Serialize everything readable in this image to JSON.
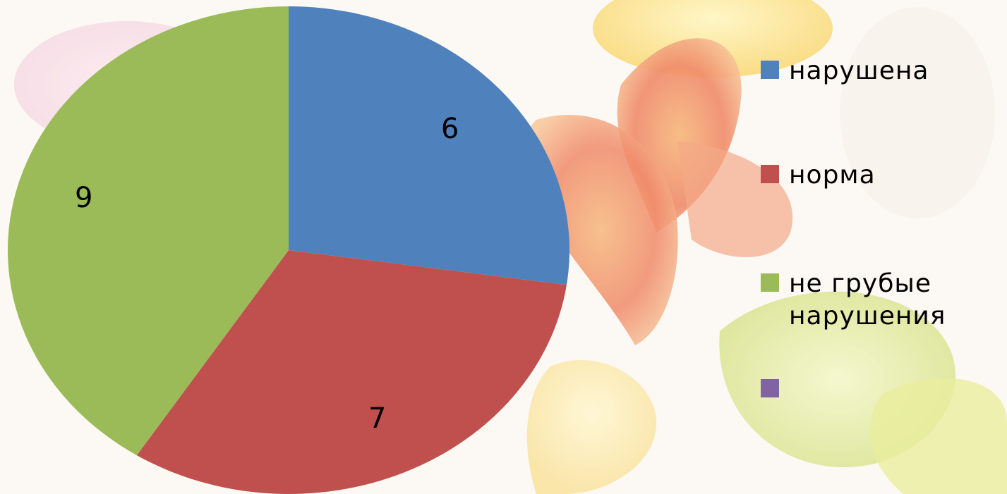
{
  "chart_data": {
    "type": "pie",
    "start_angle_deg": 0,
    "direction": "clockwise",
    "slices": [
      {
        "label": "нарушена",
        "value": 6,
        "color": "#4f81bd"
      },
      {
        "label": "норма",
        "value": 7,
        "color": "#c0504d"
      },
      {
        "label": "не грубые нарушения",
        "value": 9,
        "color": "#9bbb59"
      }
    ],
    "legend": {
      "placement": "right",
      "items": [
        {
          "label": "нарушена",
          "color": "#4f81bd"
        },
        {
          "label": "норма",
          "color": "#c0504d"
        },
        {
          "label": "не грубые нарушения",
          "color": "#9bbb59"
        },
        {
          "label": "",
          "color": "#8064a2"
        }
      ]
    }
  }
}
